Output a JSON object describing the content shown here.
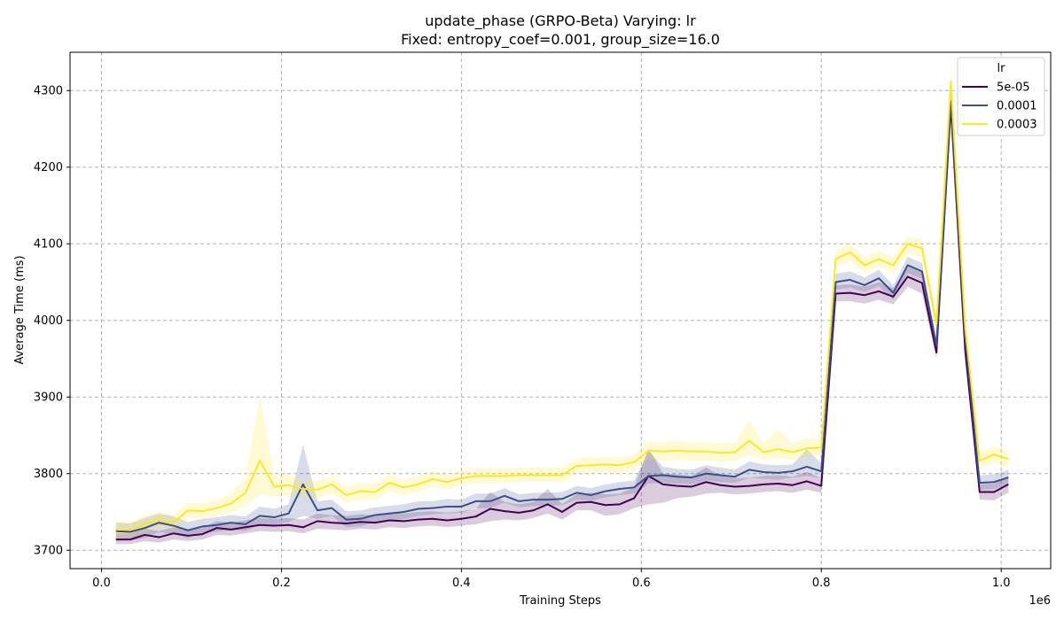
{
  "chart_data": {
    "type": "line",
    "title": "update_phase (GRPO-Beta) Varying: lr",
    "subtitle": "Fixed: entropy_coef=0.001, group_size=16.0",
    "xlabel": "Training Steps",
    "ylabel": "Average Time (ms)",
    "x_offset_label": "1e6",
    "xlim": [
      -0.035,
      1.055
    ],
    "ylim": [
      3676,
      4350
    ],
    "x_ticks": [
      0.0,
      0.2,
      0.4,
      0.6,
      0.8,
      1.0
    ],
    "x_tick_labels": [
      "0.0",
      "0.2",
      "0.4",
      "0.6",
      "0.8",
      "1.0"
    ],
    "y_ticks": [
      3700,
      3800,
      3900,
      4000,
      4100,
      4200,
      4300
    ],
    "y_tick_labels": [
      "3700",
      "3800",
      "3900",
      "4000",
      "4100",
      "4200",
      "4300"
    ],
    "grid": true,
    "legend_title": "lr",
    "legend_position": "upper right",
    "x": [
      0.016,
      0.032,
      0.048,
      0.064,
      0.08,
      0.096,
      0.112,
      0.128,
      0.144,
      0.16,
      0.176,
      0.192,
      0.208,
      0.224,
      0.24,
      0.256,
      0.272,
      0.288,
      0.304,
      0.32,
      0.336,
      0.352,
      0.368,
      0.384,
      0.4,
      0.416,
      0.432,
      0.448,
      0.464,
      0.48,
      0.496,
      0.512,
      0.528,
      0.544,
      0.56,
      0.576,
      0.592,
      0.608,
      0.624,
      0.64,
      0.656,
      0.672,
      0.688,
      0.704,
      0.72,
      0.736,
      0.752,
      0.768,
      0.784,
      0.8,
      0.816,
      0.832,
      0.848,
      0.864,
      0.88,
      0.896,
      0.912,
      0.928,
      0.944,
      0.96,
      0.976,
      0.992,
      1.008
    ],
    "series": [
      {
        "name": "5e-05",
        "color": "#440154",
        "values": [
          3714,
          3714,
          3720,
          3717,
          3722,
          3719,
          3721,
          3729,
          3727,
          3730,
          3733,
          3732,
          3733,
          3730,
          3738,
          3736,
          3735,
          3737,
          3736,
          3739,
          3738,
          3740,
          3741,
          3739,
          3741,
          3744,
          3754,
          3751,
          3749,
          3752,
          3760,
          3750,
          3762,
          3763,
          3759,
          3760,
          3768,
          3797,
          3786,
          3784,
          3783,
          3789,
          3785,
          3783,
          3784,
          3786,
          3787,
          3785,
          3790,
          3784,
          4035,
          4036,
          4033,
          4038,
          4031,
          4057,
          4049,
          3958,
          4280,
          3960,
          3776,
          3776,
          3786
        ],
        "lower": [
          3708,
          3708,
          3712,
          3710,
          3714,
          3712,
          3714,
          3720,
          3719,
          3722,
          3725,
          3724,
          3725,
          3722,
          3728,
          3727,
          3726,
          3728,
          3727,
          3730,
          3729,
          3731,
          3732,
          3730,
          3732,
          3734,
          3738,
          3740,
          3739,
          3742,
          3748,
          3740,
          3752,
          3752,
          3745,
          3747,
          3755,
          3760,
          3762,
          3768,
          3770,
          3774,
          3775,
          3773,
          3774,
          3776,
          3777,
          3775,
          3779,
          3775,
          4025,
          4025,
          4022,
          4027,
          4021,
          4044,
          4035,
          3950,
          4265,
          3952,
          3766,
          3765,
          3775
        ],
        "upper": [
          3722,
          3722,
          3728,
          3725,
          3730,
          3727,
          3729,
          3738,
          3736,
          3739,
          3742,
          3741,
          3742,
          3740,
          3748,
          3746,
          3745,
          3747,
          3746,
          3749,
          3748,
          3750,
          3751,
          3749,
          3751,
          3754,
          3776,
          3763,
          3760,
          3763,
          3780,
          3760,
          3773,
          3775,
          3773,
          3774,
          3782,
          3833,
          3800,
          3799,
          3797,
          3808,
          3797,
          3794,
          3795,
          3797,
          3798,
          3796,
          3802,
          3794,
          4046,
          4047,
          4044,
          4050,
          4042,
          4070,
          4063,
          3968,
          4296,
          3970,
          3786,
          3787,
          3797
        ]
      },
      {
        "name": "0.0001",
        "color": "#3b4f8a",
        "values": [
          3725,
          3724,
          3729,
          3736,
          3732,
          3726,
          3731,
          3733,
          3736,
          3734,
          3745,
          3743,
          3748,
          3786,
          3752,
          3755,
          3740,
          3741,
          3746,
          3748,
          3750,
          3754,
          3755,
          3757,
          3757,
          3764,
          3764,
          3771,
          3764,
          3766,
          3766,
          3767,
          3775,
          3772,
          3777,
          3780,
          3782,
          3797,
          3798,
          3796,
          3795,
          3800,
          3798,
          3796,
          3805,
          3802,
          3801,
          3803,
          3809,
          3803,
          4050,
          4053,
          4046,
          4055,
          4036,
          4072,
          4064,
          3967,
          4286,
          3977,
          3788,
          3789,
          3795
        ],
        "lower": [
          3714,
          3713,
          3716,
          3724,
          3721,
          3716,
          3722,
          3724,
          3727,
          3725,
          3734,
          3733,
          3737,
          3745,
          3741,
          3745,
          3730,
          3731,
          3737,
          3739,
          3741,
          3745,
          3747,
          3748,
          3749,
          3755,
          3755,
          3762,
          3756,
          3758,
          3758,
          3759,
          3766,
          3764,
          3769,
          3772,
          3774,
          3787,
          3788,
          3787,
          3786,
          3791,
          3789,
          3788,
          3795,
          3793,
          3792,
          3795,
          3797,
          3794,
          4040,
          4043,
          4037,
          4045,
          4027,
          4062,
          4054,
          3958,
          4272,
          3968,
          3779,
          3780,
          3786
        ],
        "upper": [
          3736,
          3735,
          3742,
          3748,
          3744,
          3737,
          3741,
          3743,
          3746,
          3744,
          3757,
          3754,
          3760,
          3838,
          3764,
          3766,
          3751,
          3752,
          3756,
          3758,
          3760,
          3764,
          3764,
          3767,
          3766,
          3774,
          3774,
          3781,
          3773,
          3775,
          3775,
          3776,
          3784,
          3781,
          3786,
          3789,
          3791,
          3830,
          3809,
          3806,
          3805,
          3811,
          3808,
          3805,
          3816,
          3812,
          3811,
          3812,
          3832,
          3813,
          4061,
          4064,
          4056,
          4066,
          4046,
          4083,
          4075,
          3977,
          4300,
          3987,
          3798,
          3799,
          3805
        ]
      },
      {
        "name": "0.0003",
        "color": "#fde725",
        "values": [
          3727,
          3727,
          3734,
          3740,
          3736,
          3752,
          3751,
          3755,
          3761,
          3775,
          3817,
          3783,
          3785,
          3780,
          3779,
          3786,
          3772,
          3777,
          3776,
          3788,
          3782,
          3786,
          3793,
          3789,
          3794,
          3797,
          3797,
          3797,
          3798,
          3798,
          3798,
          3798,
          3810,
          3811,
          3812,
          3811,
          3815,
          3830,
          3829,
          3830,
          3829,
          3829,
          3827,
          3828,
          3843,
          3828,
          3832,
          3828,
          3833,
          3834,
          4080,
          4089,
          4072,
          4080,
          4072,
          4100,
          4094,
          3995,
          4312,
          3990,
          3817,
          3825,
          3819
        ],
        "lower": [
          3716,
          3717,
          3723,
          3730,
          3726,
          3742,
          3741,
          3745,
          3749,
          3758,
          3773,
          3770,
          3772,
          3769,
          3768,
          3775,
          3762,
          3766,
          3765,
          3777,
          3772,
          3776,
          3783,
          3779,
          3785,
          3787,
          3787,
          3788,
          3789,
          3789,
          3789,
          3789,
          3800,
          3801,
          3802,
          3801,
          3805,
          3818,
          3817,
          3818,
          3817,
          3817,
          3815,
          3817,
          3824,
          3818,
          3820,
          3818,
          3822,
          3824,
          4070,
          4078,
          4062,
          4070,
          4062,
          4088,
          4082,
          3986,
          4296,
          3981,
          3807,
          3814,
          3809
        ],
        "upper": [
          3738,
          3737,
          3745,
          3750,
          3746,
          3762,
          3761,
          3765,
          3775,
          3794,
          3902,
          3797,
          3799,
          3792,
          3790,
          3797,
          3782,
          3788,
          3787,
          3799,
          3792,
          3797,
          3803,
          3799,
          3803,
          3807,
          3807,
          3806,
          3808,
          3808,
          3808,
          3808,
          3820,
          3821,
          3822,
          3821,
          3825,
          3842,
          3841,
          3843,
          3841,
          3841,
          3839,
          3840,
          3870,
          3840,
          3858,
          3840,
          3846,
          3845,
          4091,
          4100,
          4083,
          4091,
          4083,
          4110,
          4106,
          4004,
          4326,
          4000,
          3827,
          3836,
          3830
        ]
      }
    ]
  }
}
